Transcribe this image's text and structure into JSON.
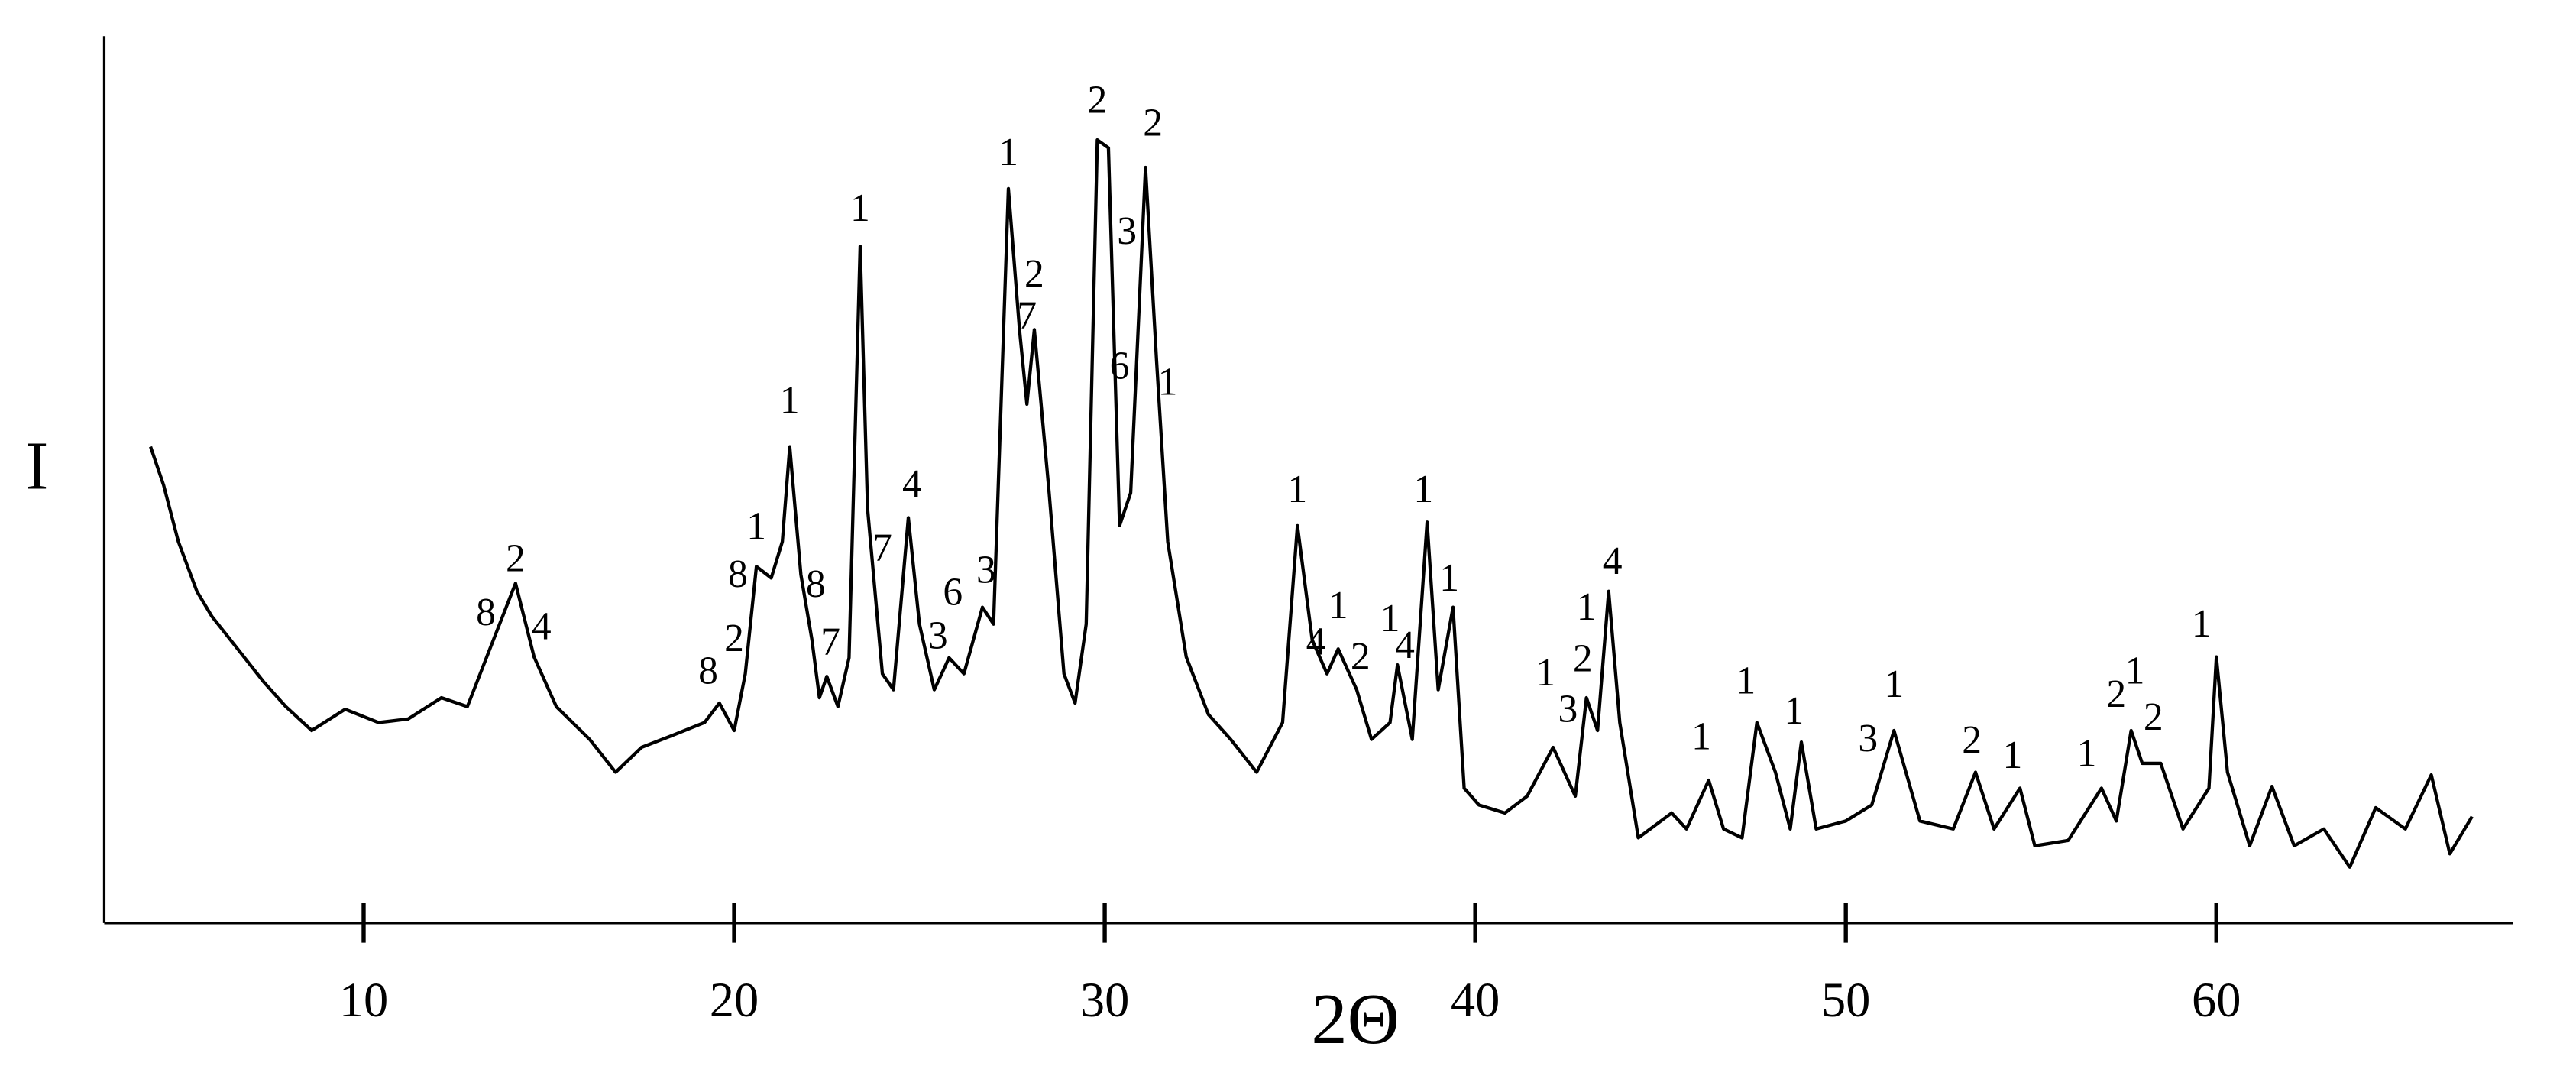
{
  "chart_data": {
    "type": "line",
    "xlabel": "2Θ",
    "ylabel": "I",
    "color": "#000000",
    "grid": false,
    "xlim": [
      3,
      68
    ],
    "ylim": [
      0,
      100
    ],
    "xticks": [
      10,
      20,
      30,
      40,
      50,
      60
    ],
    "x": [
      4.25,
      4.6,
      5.0,
      5.5,
      5.9,
      6.6,
      7.3,
      7.9,
      8.6,
      9.5,
      10.4,
      11.2,
      12.1,
      12.8,
      13.5,
      14.1,
      14.6,
      15.2,
      16.1,
      16.8,
      17.5,
      18.3,
      19.2,
      19.6,
      20.0,
      20.3,
      20.6,
      21.0,
      21.3,
      21.5,
      21.8,
      22.1,
      22.3,
      22.5,
      22.8,
      23.1,
      23.4,
      23.6,
      24.0,
      24.3,
      24.7,
      25.0,
      25.4,
      25.8,
      26.2,
      26.7,
      27.0,
      27.4,
      27.7,
      27.9,
      28.1,
      28.5,
      28.9,
      29.2,
      29.5,
      29.8,
      30.1,
      30.4,
      30.7,
      31.1,
      31.4,
      31.7,
      32.2,
      32.8,
      33.4,
      34.1,
      34.8,
      35.2,
      35.6,
      36.0,
      36.3,
      36.8,
      37.2,
      37.7,
      37.9,
      38.3,
      38.7,
      39.0,
      39.4,
      39.7,
      40.1,
      40.8,
      41.4,
      42.1,
      42.7,
      43.0,
      43.3,
      43.6,
      43.9,
      44.4,
      45.3,
      45.7,
      46.3,
      46.7,
      47.2,
      47.6,
      48.1,
      48.5,
      48.8,
      49.2,
      50.0,
      50.7,
      51.3,
      52.0,
      52.9,
      53.5,
      54.0,
      54.7,
      55.1,
      56.0,
      56.9,
      57.3,
      57.7,
      58.0,
      58.5,
      59.1,
      59.8,
      60.0,
      60.3,
      60.9,
      61.5,
      62.1,
      62.9,
      63.6,
      64.3,
      65.1,
      65.8,
      66.3,
      66.9
    ],
    "values": [
      53.7,
      49.4,
      43,
      37.4,
      34.6,
      30.9,
      27.2,
      24.4,
      21.7,
      24.1,
      22.6,
      23,
      25.4,
      24.4,
      31.9,
      38.3,
      30,
      24.4,
      20.7,
      17,
      19.8,
      21.1,
      22.6,
      24.8,
      21.7,
      28.1,
      40.2,
      38.9,
      43,
      53.7,
      39.3,
      31.9,
      25.4,
      27.8,
      24.4,
      29.9,
      76.3,
      46.7,
      28.1,
      26.3,
      45.7,
      33.7,
      26.3,
      29.9,
      28.1,
      35.6,
      33.7,
      82.8,
      66.9,
      58.5,
      66.9,
      48.5,
      28.1,
      24.8,
      33.7,
      88.3,
      87.4,
      44.8,
      48.5,
      85.2,
      63.3,
      43,
      30,
      23.5,
      20.7,
      17,
      22.6,
      44.8,
      31.9,
      28.1,
      30.9,
      26.3,
      20.7,
      22.6,
      29.1,
      20.7,
      45.2,
      26.3,
      35.6,
      15.2,
      13.3,
      12.4,
      14.3,
      19.8,
      14.3,
      25.4,
      21.7,
      37.4,
      22.6,
      9.6,
      12.4,
      10.6,
      16.1,
      10.6,
      9.6,
      22.6,
      17,
      10.6,
      20.4,
      10.6,
      11.5,
      13.3,
      21.7,
      11.5,
      10.6,
      17,
      10.6,
      15.2,
      8.7,
      9.3,
      15.2,
      11.5,
      21.7,
      18,
      18,
      10.6,
      15.2,
      30,
      17,
      8.7,
      15.4,
      8.7,
      10.6,
      6.3,
      13,
      10.6,
      16.7,
      7.8,
      12
    ],
    "annotations": [
      {
        "text": "2",
        "x": 14.1,
        "y": 40.7
      },
      {
        "text": "8",
        "x": 13.3,
        "y": 34.6
      },
      {
        "text": "4",
        "x": 14.8,
        "y": 33
      },
      {
        "text": "8",
        "x": 20.1,
        "y": 38.9
      },
      {
        "text": "1",
        "x": 20.6,
        "y": 44.3
      },
      {
        "text": "2",
        "x": 20.0,
        "y": 31.7
      },
      {
        "text": "8",
        "x": 19.3,
        "y": 28
      },
      {
        "text": "1",
        "x": 21.5,
        "y": 58.5
      },
      {
        "text": "8",
        "x": 22.2,
        "y": 37.8
      },
      {
        "text": "7",
        "x": 22.6,
        "y": 31.3
      },
      {
        "text": "1",
        "x": 23.4,
        "y": 80.2
      },
      {
        "text": "4",
        "x": 24.8,
        "y": 49.1
      },
      {
        "text": "7",
        "x": 24.0,
        "y": 41.9
      },
      {
        "text": "6",
        "x": 25.9,
        "y": 36.9
      },
      {
        "text": "3",
        "x": 25.5,
        "y": 32
      },
      {
        "text": "3",
        "x": 26.8,
        "y": 39.4
      },
      {
        "text": "1",
        "x": 27.4,
        "y": 86.5
      },
      {
        "text": "2",
        "x": 28.1,
        "y": 72.8
      },
      {
        "text": "7",
        "x": 27.9,
        "y": 68.1
      },
      {
        "text": "2",
        "x": 29.8,
        "y": 92.4
      },
      {
        "text": "3",
        "x": 30.6,
        "y": 77.6
      },
      {
        "text": "6",
        "x": 30.4,
        "y": 62.4
      },
      {
        "text": "2",
        "x": 31.3,
        "y": 89.8
      },
      {
        "text": "1",
        "x": 31.7,
        "y": 60.6
      },
      {
        "text": "1",
        "x": 35.2,
        "y": 48.5
      },
      {
        "text": "4",
        "x": 35.7,
        "y": 31.3
      },
      {
        "text": "1",
        "x": 36.3,
        "y": 35.4
      },
      {
        "text": "2",
        "x": 36.9,
        "y": 29.6
      },
      {
        "text": "1",
        "x": 37.7,
        "y": 33.9
      },
      {
        "text": "4",
        "x": 38.1,
        "y": 30.9
      },
      {
        "text": "1",
        "x": 38.6,
        "y": 48.5
      },
      {
        "text": "1",
        "x": 39.3,
        "y": 38.5
      },
      {
        "text": "1",
        "x": 41.9,
        "y": 27.8
      },
      {
        "text": "3",
        "x": 42.5,
        "y": 23.7
      },
      {
        "text": "2",
        "x": 42.9,
        "y": 29.4
      },
      {
        "text": "1",
        "x": 43.0,
        "y": 35.2
      },
      {
        "text": "4",
        "x": 43.7,
        "y": 40.4
      },
      {
        "text": "1",
        "x": 46.1,
        "y": 20.6
      },
      {
        "text": "1",
        "x": 47.3,
        "y": 26.9
      },
      {
        "text": "1",
        "x": 48.6,
        "y": 23.5
      },
      {
        "text": "3",
        "x": 50.6,
        "y": 20.4
      },
      {
        "text": "1",
        "x": 51.3,
        "y": 26.5
      },
      {
        "text": "2",
        "x": 53.4,
        "y": 20.2
      },
      {
        "text": "1",
        "x": 54.5,
        "y": 18.5
      },
      {
        "text": "1",
        "x": 56.5,
        "y": 18.7
      },
      {
        "text": "2",
        "x": 57.3,
        "y": 25.4
      },
      {
        "text": "1",
        "x": 57.8,
        "y": 28
      },
      {
        "text": "2",
        "x": 58.3,
        "y": 22.8
      },
      {
        "text": "1",
        "x": 59.6,
        "y": 33.3
      }
    ]
  }
}
